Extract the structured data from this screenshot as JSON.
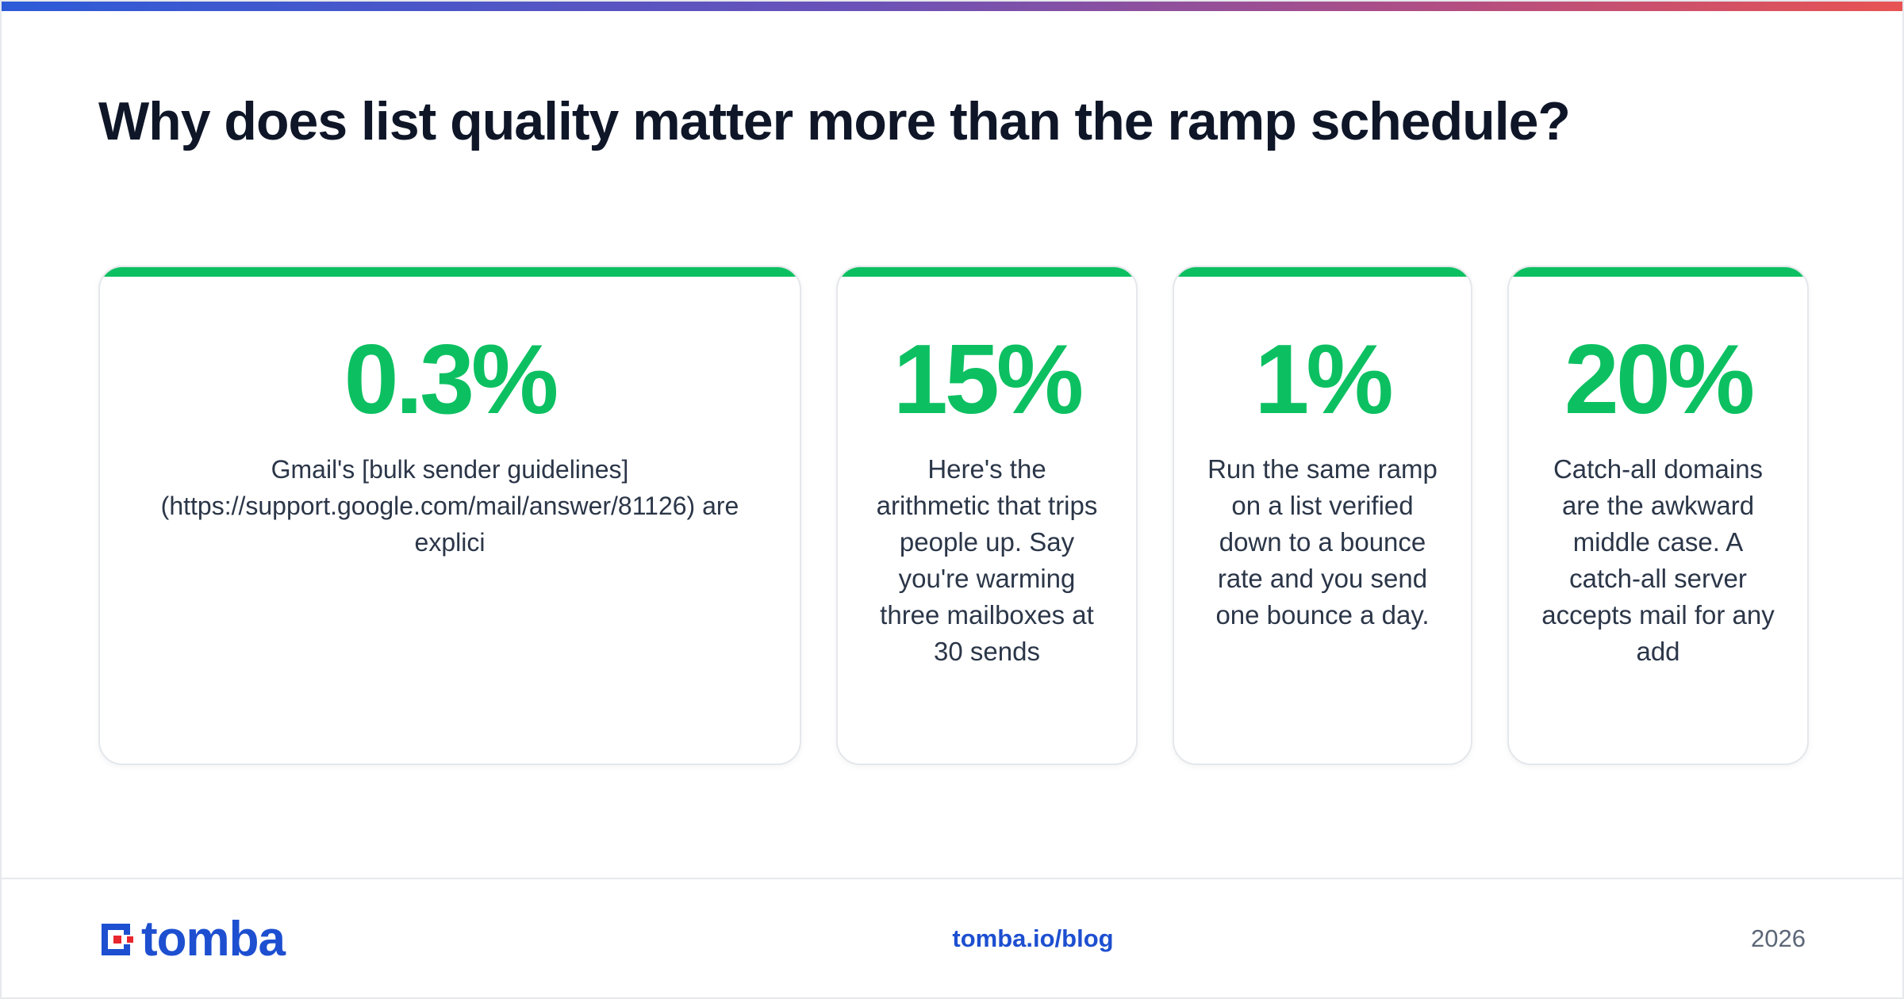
{
  "headline": "Why does list quality matter more than the ramp schedule?",
  "stats": [
    {
      "value": "0.3%",
      "text": "Gmail's [bulk sender guidelines](https://support.google.com/mail/answer/81126) are explici"
    },
    {
      "value": "15%",
      "text": "Here's the arithmetic that trips people up. Say you're warming three mailboxes at 30 sends"
    },
    {
      "value": "1%",
      "text": "Run the same ramp on a list verified down to a bounce rate and you send one bounce a day."
    },
    {
      "value": "20%",
      "text": "Catch-all domains are the awkward middle case. A catch-all server accepts mail for any add"
    }
  ],
  "footer": {
    "brand": "tomba",
    "link": "tomba.io/blog",
    "year": "2026"
  },
  "colors": {
    "accent": "#0cc061",
    "brand_blue": "#1d4fd0",
    "brand_red": "#e8262d",
    "headline": "#0e1628"
  }
}
